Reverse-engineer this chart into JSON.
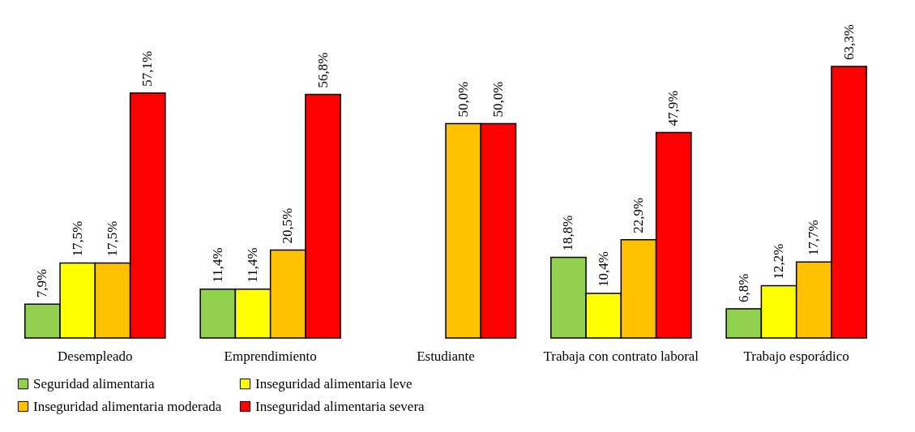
{
  "chart_data": {
    "type": "bar",
    "categories": [
      "Desempleado",
      "Emprendimiento",
      "Estudiante",
      "Trabaja con contrato laboral",
      "Trabajo esporádico"
    ],
    "series": [
      {
        "name": "Seguridad alimentaria",
        "color": "#92d050",
        "values": [
          7.9,
          11.4,
          null,
          18.8,
          6.8
        ],
        "value_labels": [
          "7,9%",
          "11,4%",
          null,
          "18,8%",
          "6,8%"
        ]
      },
      {
        "name": "Inseguridad alimentaria leve",
        "color": "#ffff00",
        "values": [
          17.5,
          11.4,
          null,
          10.4,
          12.2
        ],
        "value_labels": [
          "17,5%",
          "11,4%",
          null,
          "10,4%",
          "12,2%"
        ]
      },
      {
        "name": "Inseguridad alimentaria moderada",
        "color": "#ffc000",
        "values": [
          17.5,
          20.5,
          50.0,
          22.9,
          17.7
        ],
        "value_labels": [
          "17,5%",
          "20,5%",
          "50,0%",
          "22,9%",
          "17,7%"
        ]
      },
      {
        "name": "Inseguridad alimentaria severa",
        "color": "#ff0000",
        "values": [
          57.1,
          56.8,
          50.0,
          47.9,
          63.3
        ],
        "value_labels": [
          "57,1%",
          "56,8%",
          "50,0%",
          "47,9%",
          "63,3%"
        ]
      }
    ],
    "legend": "bottom"
  }
}
